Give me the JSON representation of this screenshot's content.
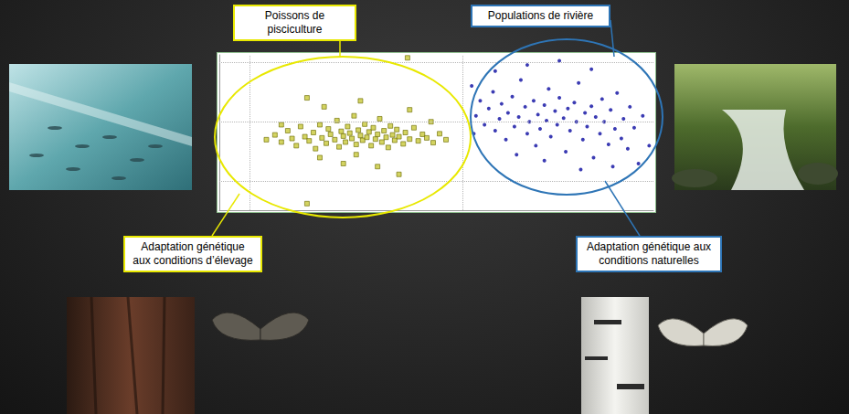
{
  "chart_data": {
    "type": "scatter",
    "xlim": [
      -0.14,
      1.89
    ],
    "ylim": [
      -0.48,
      2.12
    ],
    "xticks": [
      0,
      1
    ],
    "yticks": [
      0,
      1,
      2
    ],
    "grid": true,
    "tick_labels": false,
    "series": [
      {
        "name": "Poissons de pisciculture",
        "color": "#c8c83a",
        "marker": "square",
        "annotation": "Adaptation génétique aux conditions d’élevage",
        "values": [
          [
            0.08,
            0.7
          ],
          [
            0.12,
            0.78
          ],
          [
            0.15,
            0.66
          ],
          [
            0.18,
            0.85
          ],
          [
            0.2,
            0.72
          ],
          [
            0.22,
            0.6
          ],
          [
            0.24,
            0.92
          ],
          [
            0.26,
            0.75
          ],
          [
            0.28,
            0.68
          ],
          [
            0.3,
            0.82
          ],
          [
            0.31,
            0.55
          ],
          [
            0.33,
            0.95
          ],
          [
            0.34,
            0.73
          ],
          [
            0.36,
            0.64
          ],
          [
            0.37,
            0.88
          ],
          [
            0.38,
            0.79
          ],
          [
            0.4,
            0.7
          ],
          [
            0.41,
            1.02
          ],
          [
            0.42,
            0.58
          ],
          [
            0.43,
            0.84
          ],
          [
            0.44,
            0.76
          ],
          [
            0.45,
            0.66
          ],
          [
            0.46,
            0.92
          ],
          [
            0.47,
            0.81
          ],
          [
            0.48,
            0.72
          ],
          [
            0.49,
            1.1
          ],
          [
            0.5,
            0.62
          ],
          [
            0.51,
            0.86
          ],
          [
            0.52,
            0.77
          ],
          [
            0.53,
            0.69
          ],
          [
            0.54,
            0.96
          ],
          [
            0.55,
            0.74
          ],
          [
            0.56,
            0.83
          ],
          [
            0.57,
            0.6
          ],
          [
            0.58,
            0.9
          ],
          [
            0.59,
            0.71
          ],
          [
            0.6,
            0.79
          ],
          [
            0.61,
            1.05
          ],
          [
            0.62,
            0.66
          ],
          [
            0.63,
            0.85
          ],
          [
            0.64,
            0.74
          ],
          [
            0.65,
            0.57
          ],
          [
            0.66,
            0.93
          ],
          [
            0.67,
            0.78
          ],
          [
            0.68,
            0.69
          ],
          [
            0.69,
            0.87
          ],
          [
            0.7,
            0.75
          ],
          [
            0.72,
            0.63
          ],
          [
            0.73,
            0.82
          ],
          [
            0.75,
            0.71
          ],
          [
            0.77,
            0.9
          ],
          [
            0.79,
            0.68
          ],
          [
            0.81,
            0.79
          ],
          [
            0.83,
            0.73
          ],
          [
            0.86,
            0.65
          ],
          [
            0.89,
            0.8
          ],
          [
            0.92,
            0.7
          ],
          [
            0.35,
            1.25
          ],
          [
            0.52,
            1.35
          ],
          [
            0.44,
            0.3
          ],
          [
            0.6,
            0.25
          ],
          [
            0.7,
            0.12
          ],
          [
            0.27,
            -0.37
          ],
          [
            0.74,
            2.07
          ],
          [
            0.27,
            1.4
          ],
          [
            0.75,
            1.2
          ],
          [
            0.5,
            0.45
          ],
          [
            0.33,
            0.4
          ],
          [
            0.85,
            1.0
          ],
          [
            0.15,
            0.95
          ]
        ]
      },
      {
        "name": "Populations de rivière",
        "color": "#0a0aa0",
        "marker": "circle",
        "annotation": "Adaptation génétique aux conditions naturelles",
        "values": [
          [
            1.04,
            1.6
          ],
          [
            1.06,
            1.1
          ],
          [
            1.08,
            1.35
          ],
          [
            1.1,
            0.95
          ],
          [
            1.12,
            1.22
          ],
          [
            1.14,
            1.5
          ],
          [
            1.15,
            0.85
          ],
          [
            1.17,
            1.05
          ],
          [
            1.18,
            1.3
          ],
          [
            1.2,
            0.7
          ],
          [
            1.21,
            1.15
          ],
          [
            1.23,
            1.42
          ],
          [
            1.24,
            0.92
          ],
          [
            1.26,
            1.08
          ],
          [
            1.27,
            1.7
          ],
          [
            1.29,
            1.25
          ],
          [
            1.3,
            0.8
          ],
          [
            1.31,
            1.0
          ],
          [
            1.33,
            1.35
          ],
          [
            1.34,
            0.6
          ],
          [
            1.35,
            1.12
          ],
          [
            1.36,
            0.88
          ],
          [
            1.38,
            1.28
          ],
          [
            1.39,
            1.02
          ],
          [
            1.4,
            1.55
          ],
          [
            1.41,
            0.75
          ],
          [
            1.43,
            1.18
          ],
          [
            1.44,
            0.95
          ],
          [
            1.45,
            1.4
          ],
          [
            1.47,
            1.06
          ],
          [
            1.48,
            0.5
          ],
          [
            1.49,
            1.22
          ],
          [
            1.5,
            0.85
          ],
          [
            1.52,
            1.32
          ],
          [
            1.53,
            1.0
          ],
          [
            1.54,
            1.65
          ],
          [
            1.56,
            0.7
          ],
          [
            1.57,
            1.15
          ],
          [
            1.58,
            0.92
          ],
          [
            1.6,
            1.26
          ],
          [
            1.61,
            0.4
          ],
          [
            1.62,
            1.08
          ],
          [
            1.64,
            0.8
          ],
          [
            1.65,
            1.38
          ],
          [
            1.66,
            1.0
          ],
          [
            1.68,
            0.62
          ],
          [
            1.69,
            1.2
          ],
          [
            1.71,
            0.88
          ],
          [
            1.72,
            1.48
          ],
          [
            1.74,
            0.72
          ],
          [
            1.75,
            1.05
          ],
          [
            1.77,
            0.55
          ],
          [
            1.78,
            1.25
          ],
          [
            1.8,
            0.9
          ],
          [
            1.82,
            0.3
          ],
          [
            1.84,
            1.1
          ],
          [
            1.3,
            1.95
          ],
          [
            1.45,
            2.02
          ],
          [
            1.15,
            1.85
          ],
          [
            1.6,
            1.88
          ],
          [
            1.38,
            0.35
          ],
          [
            1.25,
            0.45
          ],
          [
            1.7,
            0.25
          ],
          [
            1.55,
            0.2
          ],
          [
            1.05,
            0.8
          ],
          [
            1.87,
            0.6
          ]
        ]
      }
    ]
  }
}
